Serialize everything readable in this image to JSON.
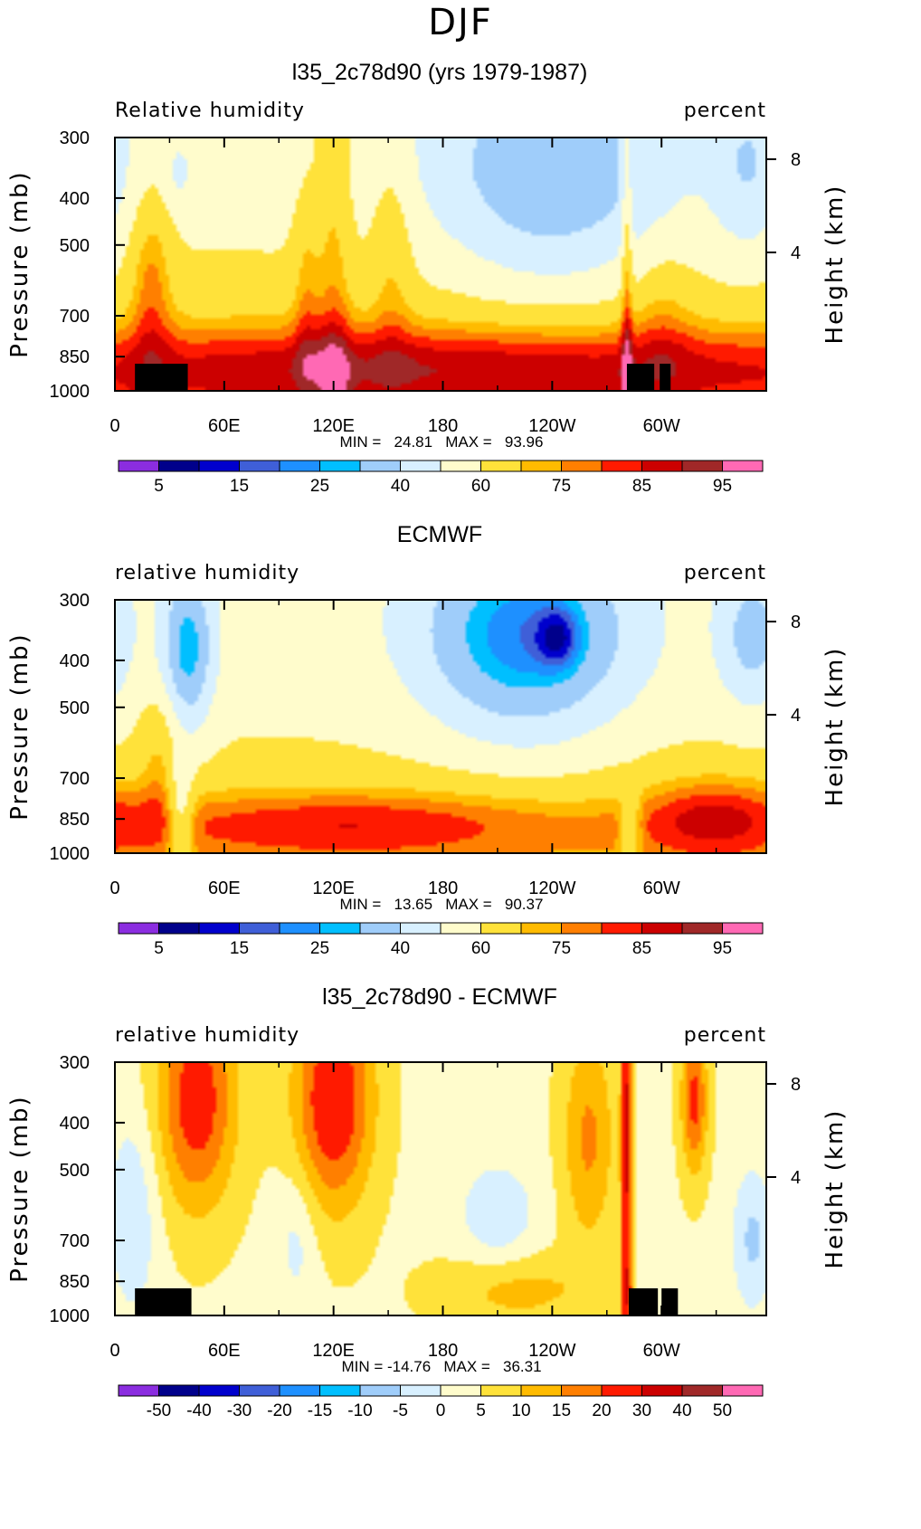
{
  "page_title": "DJF",
  "colors": {
    "relhum_scale": [
      "#8b2de0",
      "#00008b",
      "#0000cd",
      "#3f5fd8",
      "#1e90ff",
      "#00bfff",
      "#9fcdfa",
      "#d8f0ff",
      "#fffccc",
      "#ffe23a",
      "#ffbb00",
      "#ff7f00",
      "#ff1a00",
      "#cc0000",
      "#a02828",
      "#ff69b4"
    ],
    "diff_scale": [
      "#8b2de0",
      "#00008b",
      "#0000cd",
      "#3f5fd8",
      "#1e90ff",
      "#00bfff",
      "#9fcdfa",
      "#d8f0ff",
      "#fffccc",
      "#ffe23a",
      "#ffbb00",
      "#ff7f00",
      "#ff1a00",
      "#cc0000",
      "#a02828",
      "#ff69b4"
    ]
  },
  "chart_data": [
    {
      "type": "heatmap",
      "title": "l35_2c78d90 (yrs 1979-1987)",
      "field_label": "Relative humidity",
      "units_label": "percent",
      "ylabel": "Pressure (mb)",
      "ylabel_right": "Height (km)",
      "yticks": [
        "300",
        "400",
        "500",
        "700",
        "850",
        "1000"
      ],
      "ytick_values": [
        300,
        400,
        500,
        700,
        850,
        1000
      ],
      "ylim": [
        1000,
        300
      ],
      "yticks_right": [
        "8",
        "4"
      ],
      "xticks": [
        "0",
        "60E",
        "120E",
        "180",
        "120W",
        "60W"
      ],
      "xtick_values": [
        0,
        60,
        120,
        180,
        240,
        300
      ],
      "xlim": [
        0,
        357.5
      ],
      "stats": "MIN =   24.81   MAX =   93.96",
      "min": 24.81,
      "max": 93.96,
      "colorbar_labels": [
        "5",
        "15",
        "25",
        "40",
        "60",
        "75",
        "85",
        "95"
      ],
      "colorbar_levels": [
        5,
        10,
        15,
        20,
        25,
        30,
        40,
        50,
        60,
        70,
        75,
        80,
        85,
        90,
        95
      ],
      "mountains": [
        [
          11,
          40
        ],
        [
          281,
          296
        ],
        [
          299,
          305
        ]
      ]
    },
    {
      "type": "heatmap",
      "title": "ECMWF",
      "field_label": "relative humidity",
      "units_label": "percent",
      "ylabel": "Pressure (mb)",
      "ylabel_right": "Height (km)",
      "yticks": [
        "300",
        "400",
        "500",
        "700",
        "850",
        "1000"
      ],
      "ytick_values": [
        300,
        400,
        500,
        700,
        850,
        1000
      ],
      "ylim": [
        1000,
        300
      ],
      "yticks_right": [
        "8",
        "4"
      ],
      "xticks": [
        "0",
        "60E",
        "120E",
        "180",
        "120W",
        "60W"
      ],
      "xtick_values": [
        0,
        60,
        120,
        180,
        240,
        300
      ],
      "xlim": [
        0,
        357.5
      ],
      "stats": "MIN =   13.65   MAX =   90.37",
      "min": 13.65,
      "max": 90.37,
      "colorbar_labels": [
        "5",
        "15",
        "25",
        "40",
        "60",
        "75",
        "85",
        "95"
      ],
      "colorbar_levels": [
        5,
        10,
        15,
        20,
        25,
        30,
        40,
        50,
        60,
        70,
        75,
        80,
        85,
        90,
        95
      ],
      "mountains": []
    },
    {
      "type": "heatmap",
      "title": "l35_2c78d90 - ECMWF",
      "field_label": "relative humidity",
      "units_label": "percent",
      "ylabel": "Pressure (mb)",
      "ylabel_right": "Height (km)",
      "yticks": [
        "300",
        "400",
        "500",
        "700",
        "850",
        "1000"
      ],
      "ytick_values": [
        300,
        400,
        500,
        700,
        850,
        1000
      ],
      "ylim": [
        1000,
        300
      ],
      "yticks_right": [
        "8",
        "4"
      ],
      "xticks": [
        "0",
        "60E",
        "120E",
        "180",
        "120W",
        "60W"
      ],
      "xtick_values": [
        0,
        60,
        120,
        180,
        240,
        300
      ],
      "xlim": [
        0,
        357.5
      ],
      "stats": "MIN = -14.76   MAX =   36.31",
      "min": -14.76,
      "max": 36.31,
      "colorbar_labels": [
        "-50",
        "-40",
        "-30",
        "-20",
        "-15",
        "-10",
        "-5",
        "0",
        "5",
        "10",
        "15",
        "20",
        "30",
        "40",
        "50"
      ],
      "colorbar_levels": [
        -50,
        -40,
        -30,
        -20,
        -15,
        -10,
        -5,
        0,
        5,
        10,
        15,
        20,
        30,
        40,
        50
      ],
      "mountains": [
        [
          11,
          42
        ],
        [
          282,
          298
        ],
        [
          300,
          309
        ]
      ]
    }
  ]
}
